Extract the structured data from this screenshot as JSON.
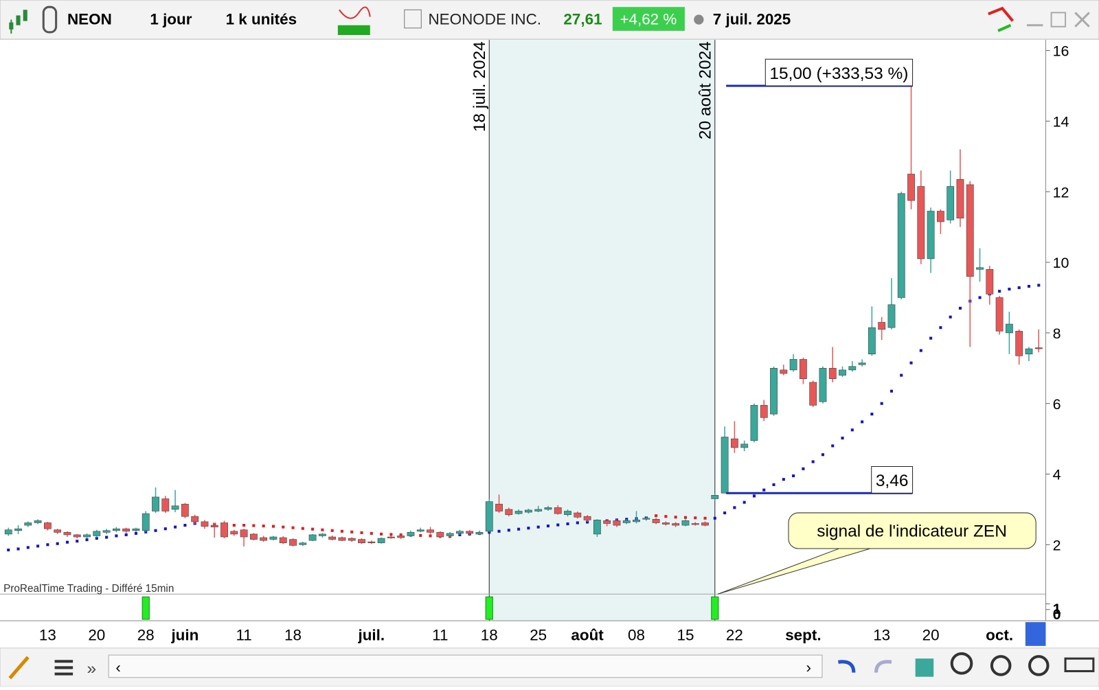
{
  "toolbar": {
    "symbol": "NEON",
    "period": "1 jour",
    "units": "1 k unités",
    "name": "NEONODE INC.",
    "price": "27,61",
    "change": "+4,62 %",
    "date": "7 juil. 2025"
  },
  "chart_data": {
    "type": "candlestick",
    "source": "ProRealTime Trading - Différé 15min",
    "categories": [
      null,
      null,
      null,
      null,
      "13",
      null,
      null,
      null,
      null,
      "20",
      null,
      null,
      null,
      null,
      "28",
      null,
      null,
      null,
      "juin",
      null,
      null,
      null,
      null,
      null,
      "11",
      null,
      null,
      null,
      null,
      "18",
      null,
      null,
      null,
      null,
      null,
      null,
      null,
      "juil.",
      null,
      null,
      null,
      null,
      null,
      null,
      "11",
      null,
      null,
      null,
      null,
      "18",
      null,
      null,
      null,
      null,
      "25",
      null,
      null,
      null,
      null,
      "août",
      null,
      null,
      null,
      null,
      "08",
      null,
      null,
      null,
      null,
      "15",
      null,
      null,
      null,
      null,
      "22",
      null,
      null,
      null,
      null,
      null,
      null,
      "sept.",
      null,
      null,
      null,
      null,
      null,
      null,
      null,
      "13",
      null,
      null,
      null,
      null,
      "20",
      null,
      null,
      null,
      null,
      null,
      null,
      "oct.",
      null,
      null,
      null,
      null
    ],
    "open": [
      2.3,
      2.4,
      2.55,
      2.62,
      2.62,
      2.42,
      2.35,
      2.28,
      2.22,
      2.25,
      2.35,
      2.4,
      2.45,
      2.4,
      2.4,
      2.95,
      3.3,
      3.0,
      3.15,
      2.8,
      2.65,
      2.55,
      2.62,
      2.38,
      2.42,
      2.3,
      2.2,
      2.15,
      2.2,
      2.15,
      2.0,
      2.12,
      2.25,
      2.22,
      2.2,
      2.18,
      2.15,
      2.08,
      2.05,
      2.22,
      2.25,
      2.25,
      2.38,
      2.42,
      2.35,
      2.25,
      2.32,
      2.38,
      2.3,
      2.38,
      3.15,
      3.0,
      2.88,
      2.92,
      2.95,
      3.0,
      3.05,
      2.85,
      2.9,
      2.8,
      2.3,
      2.68,
      2.68,
      2.62,
      2.65,
      2.72,
      2.72,
      2.62,
      2.6,
      2.55,
      2.6,
      2.62,
      3.3,
      3.46,
      5.0,
      4.75,
      4.95,
      5.95,
      5.7,
      6.95,
      6.95,
      7.25,
      6.6,
      6.05,
      7.0,
      6.8,
      6.95,
      7.1,
      7.4,
      8.3,
      8.15,
      9.0,
      12.5,
      12.15,
      10.1,
      11.45,
      11.2,
      12.35,
      12.2,
      9.8,
      9.8,
      9.0,
      8.0,
      8.05,
      7.4,
      7.58
    ],
    "high": [
      2.48,
      2.55,
      2.66,
      2.72,
      2.65,
      2.45,
      2.38,
      2.3,
      2.32,
      2.42,
      2.45,
      2.5,
      2.48,
      2.48,
      2.95,
      3.62,
      3.38,
      3.55,
      3.18,
      2.85,
      2.7,
      2.62,
      2.68,
      2.42,
      2.45,
      2.33,
      2.25,
      2.25,
      2.24,
      2.18,
      2.08,
      2.3,
      2.33,
      2.26,
      2.23,
      2.21,
      2.18,
      2.12,
      2.2,
      2.26,
      2.28,
      2.4,
      2.48,
      2.5,
      2.38,
      2.36,
      2.42,
      2.41,
      2.4,
      3.3,
      3.42,
      3.05,
      3.0,
      3.02,
      3.1,
      3.1,
      3.12,
      3.0,
      2.94,
      2.84,
      2.72,
      2.72,
      2.72,
      2.72,
      2.95,
      2.8,
      2.76,
      2.66,
      2.64,
      2.72,
      2.64,
      2.66,
      3.45,
      5.35,
      5.5,
      4.95,
      6.0,
      6.1,
      7.05,
      7.1,
      7.4,
      7.3,
      6.65,
      7.05,
      7.6,
      7.05,
      7.2,
      7.25,
      8.75,
      8.45,
      9.55,
      12.0,
      15.0,
      12.6,
      11.55,
      11.5,
      12.6,
      13.2,
      12.3,
      10.4,
      9.9,
      9.05,
      8.6,
      8.1,
      7.6,
      8.1
    ],
    "low": [
      2.25,
      2.3,
      2.5,
      2.58,
      2.4,
      2.3,
      2.22,
      2.18,
      2.18,
      2.2,
      2.3,
      2.35,
      2.33,
      2.36,
      2.36,
      2.9,
      2.9,
      2.92,
      2.75,
      2.58,
      2.45,
      2.2,
      2.18,
      2.25,
      1.95,
      2.12,
      2.08,
      2.12,
      2.02,
      1.95,
      1.96,
      2.1,
      2.2,
      2.12,
      2.1,
      2.08,
      2.02,
      2.02,
      2.03,
      2.17,
      2.16,
      2.22,
      2.35,
      2.3,
      2.18,
      2.22,
      2.28,
      2.28,
      2.27,
      2.35,
      2.9,
      2.8,
      2.85,
      2.88,
      2.92,
      2.96,
      2.85,
      2.8,
      2.74,
      2.65,
      2.22,
      2.52,
      2.5,
      2.58,
      2.6,
      2.68,
      2.58,
      2.54,
      2.5,
      2.52,
      2.54,
      2.52,
      3.25,
      3.46,
      4.6,
      4.65,
      4.9,
      5.5,
      5.65,
      6.8,
      6.9,
      6.55,
      5.9,
      6.0,
      6.6,
      6.75,
      6.9,
      7.05,
      7.35,
      7.8,
      8.1,
      8.95,
      11.5,
      9.95,
      9.7,
      10.8,
      11.1,
      11.0,
      7.6,
      9.45,
      8.8,
      7.95,
      7.4,
      7.1,
      7.2,
      7.45
    ],
    "close": [
      2.42,
      2.45,
      2.62,
      2.68,
      2.45,
      2.35,
      2.28,
      2.22,
      2.28,
      2.38,
      2.4,
      2.45,
      2.38,
      2.45,
      2.88,
      3.35,
      2.95,
      3.1,
      2.8,
      2.65,
      2.52,
      2.5,
      2.22,
      2.3,
      2.22,
      2.15,
      2.12,
      2.22,
      2.05,
      1.98,
      2.05,
      2.28,
      2.3,
      2.15,
      2.12,
      2.12,
      2.05,
      2.05,
      2.18,
      2.2,
      2.2,
      2.35,
      2.42,
      2.35,
      2.22,
      2.32,
      2.38,
      2.32,
      2.35,
      3.22,
      2.95,
      2.85,
      2.95,
      2.98,
      3.0,
      3.05,
      2.88,
      2.95,
      2.78,
      2.7,
      2.7,
      2.6,
      2.55,
      2.68,
      2.7,
      2.75,
      2.62,
      2.58,
      2.55,
      2.68,
      2.58,
      2.55,
      3.4,
      5.05,
      4.75,
      4.85,
      5.95,
      5.6,
      7.0,
      6.85,
      7.25,
      6.7,
      5.95,
      7.0,
      6.7,
      6.95,
      7.05,
      7.15,
      8.15,
      8.1,
      8.8,
      11.95,
      11.75,
      10.1,
      11.45,
      11.15,
      12.15,
      11.25,
      9.6,
      9.85,
      9.1,
      8.05,
      8.25,
      7.35,
      7.55,
      7.55
    ],
    "up_color": "#3aa89a",
    "down_color": "#e85757",
    "series": [
      {
        "color": "#1414c8",
        "values": [
          1.85,
          1.88,
          1.92,
          1.96,
          2.0,
          2.03,
          2.07,
          2.1,
          2.14,
          2.18,
          2.21,
          2.25,
          2.28,
          2.32,
          2.36,
          2.4,
          2.45,
          2.5,
          2.55,
          2.6,
          null,
          null,
          null,
          null,
          null,
          null,
          null,
          null,
          null,
          null,
          null,
          null,
          null,
          null,
          null,
          null,
          null,
          null,
          null,
          null,
          null,
          null,
          null,
          null,
          null,
          null,
          2.28,
          2.3,
          2.32,
          2.35,
          2.38,
          2.41,
          2.44,
          2.47,
          2.5,
          2.53,
          2.56,
          2.59,
          2.62,
          2.64,
          2.66,
          2.68,
          2.7,
          2.72,
          2.74,
          2.76,
          null,
          null,
          null,
          null,
          null,
          null,
          2.75,
          2.9,
          3.05,
          3.2,
          3.38,
          3.55,
          3.7,
          3.85,
          3.95,
          4.15,
          4.35,
          4.55,
          4.8,
          5.02,
          5.25,
          5.48,
          5.7,
          6.0,
          6.35,
          6.8,
          7.15,
          7.5,
          7.85,
          8.15,
          8.45,
          8.7,
          8.9,
          9.0,
          9.1,
          9.18,
          9.24,
          9.28,
          9.32,
          9.35
        ]
      },
      {
        "color": "#e01e1e",
        "values": [
          null,
          null,
          null,
          null,
          null,
          null,
          null,
          null,
          null,
          null,
          null,
          null,
          null,
          null,
          null,
          null,
          null,
          null,
          null,
          null,
          2.6,
          2.58,
          2.56,
          2.55,
          2.55,
          2.54,
          2.53,
          2.52,
          2.5,
          2.48,
          2.46,
          2.44,
          2.42,
          2.4,
          2.38,
          2.36,
          2.34,
          2.32,
          2.3,
          2.29,
          2.28,
          2.27,
          2.26,
          2.25,
          2.24,
          2.23,
          null,
          null,
          null,
          null,
          null,
          null,
          null,
          null,
          null,
          null,
          null,
          null,
          null,
          null,
          null,
          null,
          null,
          null,
          null,
          null,
          2.82,
          2.8,
          2.78,
          2.77,
          2.76,
          2.75,
          null,
          null,
          null,
          null,
          null,
          null,
          null,
          null,
          null,
          null,
          null,
          null,
          null,
          null,
          null,
          null,
          null,
          null,
          null,
          null,
          null,
          null,
          null,
          null,
          null,
          null,
          null,
          null,
          null,
          null,
          null,
          null,
          null,
          null
        ]
      }
    ],
    "ylim": [
      0.6,
      16.3
    ],
    "yticks": [
      2,
      4,
      6,
      8,
      10,
      12,
      14,
      16
    ],
    "markers": [
      {
        "label": "18 juil. 2024",
        "category": 49
      },
      {
        "label": "20 août 2024",
        "category": 72
      }
    ],
    "hlines": [
      {
        "value": 15.0,
        "label": "15,00 (+333,53 %)"
      },
      {
        "value": 3.46,
        "label": "3,46"
      }
    ],
    "callout": "signal de l'indicateur ZEN",
    "signal": {
      "color": "#22ee22",
      "values": [
        0,
        0,
        0,
        0,
        0,
        0,
        0,
        0,
        0,
        0,
        0,
        0,
        0,
        0,
        1,
        0,
        0,
        0,
        0,
        0,
        0,
        0,
        0,
        0,
        0,
        0,
        0,
        0,
        0,
        0,
        0,
        0,
        0,
        0,
        0,
        0,
        0,
        0,
        0,
        0,
        0,
        0,
        0,
        0,
        0,
        0,
        0,
        0,
        0,
        1,
        0,
        0,
        0,
        0,
        0,
        0,
        0,
        0,
        0,
        0,
        0,
        0,
        0,
        0,
        0,
        0,
        0,
        0,
        0,
        0,
        0,
        0,
        1,
        0,
        0,
        0,
        0,
        0,
        0,
        0,
        0,
        0,
        0,
        0,
        0,
        0,
        0,
        0,
        0,
        0,
        0,
        0,
        0,
        0,
        0,
        0,
        0,
        0,
        0,
        0,
        0,
        0,
        0,
        0,
        0,
        0
      ],
      "ylim": [
        0,
        1
      ],
      "yticks": [
        0,
        1
      ]
    }
  }
}
